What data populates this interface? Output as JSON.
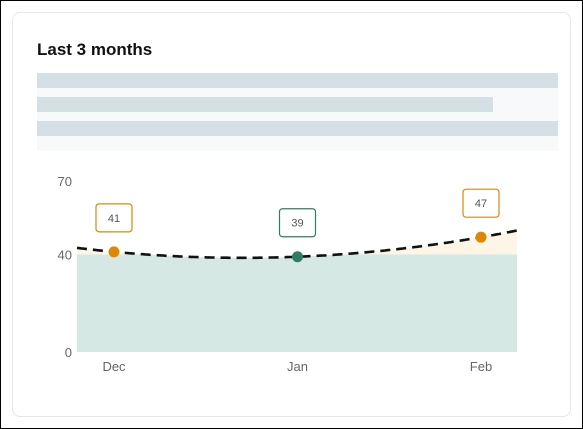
{
  "card": {
    "title": "Last 3 months"
  },
  "placeholder": {
    "bars": [
      1.0,
      0.876,
      1.0
    ]
  },
  "chart_data": {
    "type": "line",
    "x": [
      "Dec",
      "Jan",
      "Feb"
    ],
    "yticks": [
      0,
      40,
      70
    ],
    "ylim": [
      0,
      70
    ],
    "baseline": 40,
    "grid": false,
    "series": [
      {
        "values": [
          41,
          39,
          47
        ],
        "data_labels": [
          "41",
          "39",
          "47"
        ]
      }
    ],
    "colors": {
      "below": "#2f7d64",
      "above": "#de8706",
      "fill_below": "#d6e8e3",
      "fill_above": "#fdf6e7",
      "line": "#111111"
    }
  }
}
